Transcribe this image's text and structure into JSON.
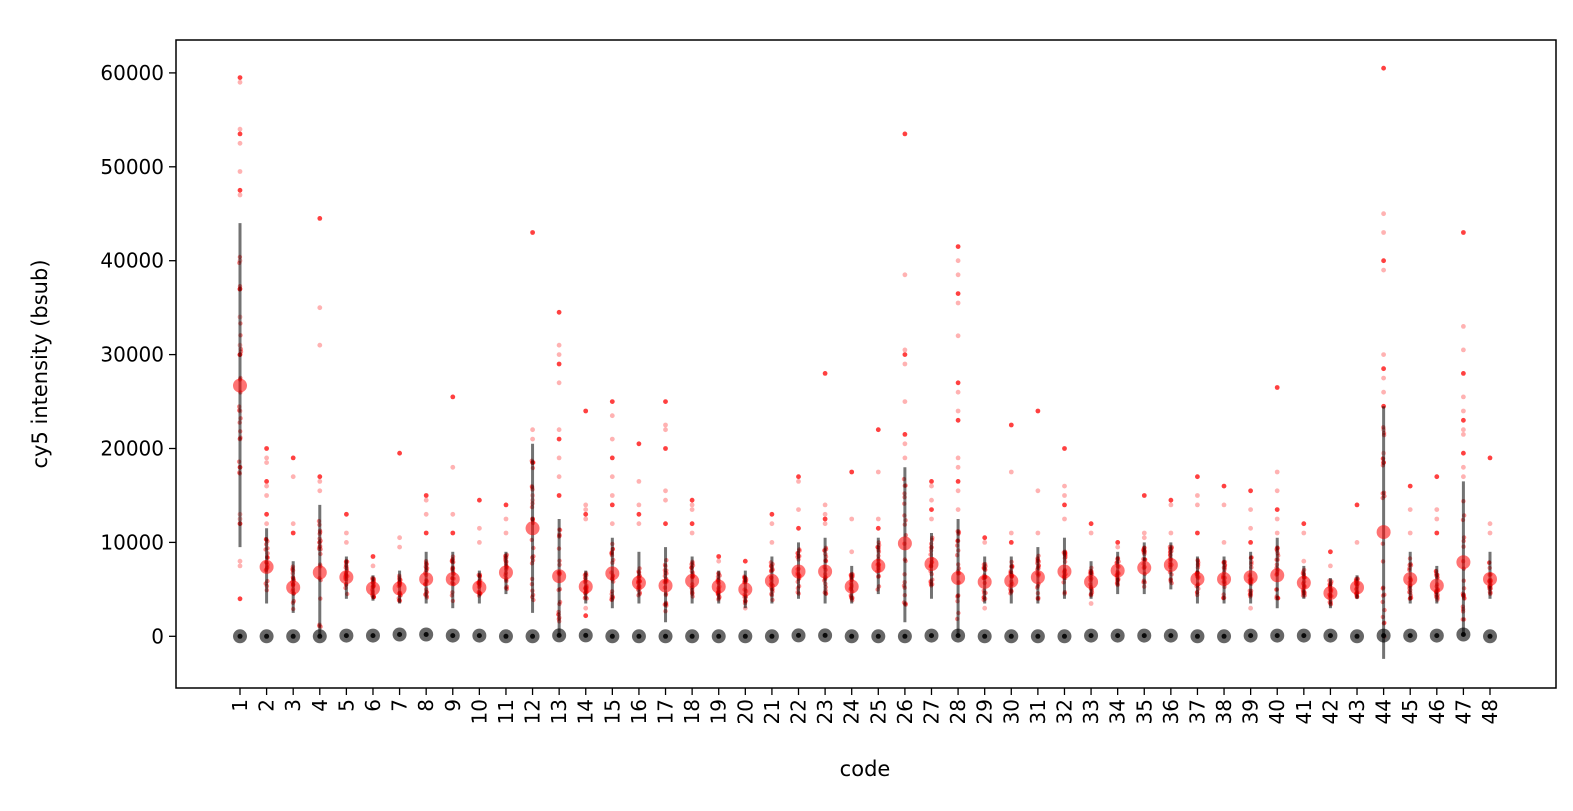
{
  "chart_data": {
    "type": "scatter",
    "title": "",
    "xlabel": "code",
    "ylabel": "cy5 intensity (bsub)",
    "ylim": [
      -5500,
      63500
    ],
    "yticks": [
      0,
      10000,
      20000,
      30000,
      40000,
      50000,
      60000
    ],
    "ytick_labels": [
      "0",
      "10000",
      "20000",
      "30000",
      "40000",
      "50000",
      "60000"
    ],
    "categories": [
      "1",
      "2",
      "3",
      "4",
      "5",
      "6",
      "7",
      "8",
      "9",
      "10",
      "11",
      "12",
      "13",
      "14",
      "15",
      "16",
      "17",
      "18",
      "19",
      "20",
      "21",
      "22",
      "23",
      "24",
      "25",
      "26",
      "27",
      "28",
      "29",
      "30",
      "31",
      "32",
      "33",
      "34",
      "35",
      "36",
      "37",
      "38",
      "39",
      "40",
      "41",
      "42",
      "43",
      "44",
      "45",
      "46",
      "47",
      "48"
    ],
    "grid": false,
    "legend": "none",
    "colors": {
      "positive": "#ff0000",
      "negative": "#000000",
      "errorbar": "#000000"
    },
    "series": [
      {
        "role": "mean",
        "values": [
          26700,
          7400,
          5200,
          6800,
          6300,
          5100,
          5100,
          6100,
          6100,
          5200,
          6800,
          11500,
          6400,
          5300,
          6700,
          5700,
          5400,
          5900,
          5300,
          5000,
          5900,
          6900,
          6900,
          5300,
          7500,
          9900,
          7700,
          6200,
          5800,
          5900,
          6300,
          6900,
          5800,
          7000,
          7300,
          7600,
          6100,
          6100,
          6300,
          6500,
          5700,
          4600,
          5200,
          11100,
          6100,
          5400,
          7900,
          6100
        ]
      },
      {
        "role": "std-range",
        "low": [
          9500,
          3500,
          2500,
          0,
          4000,
          3800,
          3500,
          3500,
          3000,
          3500,
          4500,
          2500,
          0,
          3500,
          3000,
          3500,
          1500,
          3500,
          3500,
          3000,
          3500,
          4000,
          3500,
          3500,
          4500,
          1500,
          4000,
          0,
          3500,
          3500,
          3500,
          4000,
          4000,
          4500,
          4500,
          5000,
          3500,
          3500,
          3500,
          3000,
          4000,
          3000,
          4000,
          -2400,
          3500,
          3500,
          0,
          4000
        ],
        "high": [
          44000,
          11500,
          8000,
          14000,
          8500,
          6500,
          7000,
          9000,
          9000,
          7000,
          9000,
          20500,
          12500,
          7000,
          10500,
          9000,
          9500,
          8500,
          7000,
          7000,
          8500,
          10000,
          10500,
          7500,
          10500,
          18000,
          11000,
          12500,
          8500,
          8500,
          9500,
          10500,
          8000,
          9000,
          10000,
          10000,
          8500,
          8500,
          9000,
          10500,
          7500,
          6200,
          6500,
          24500,
          9000,
          7500,
          16500,
          9000
        ]
      },
      {
        "role": "negative-control",
        "values": [
          0,
          0,
          0,
          0,
          80,
          80,
          200,
          200,
          80,
          80,
          0,
          0,
          100,
          100,
          0,
          0,
          0,
          0,
          0,
          0,
          0,
          100,
          100,
          0,
          0,
          0,
          80,
          80,
          0,
          0,
          0,
          0,
          80,
          80,
          80,
          80,
          0,
          0,
          80,
          80,
          80,
          80,
          0,
          80,
          80,
          80,
          200,
          0
        ]
      },
      {
        "role": "cell-points-outliers",
        "points": {
          "1": [
            59500,
            59000,
            54000,
            53500,
            52500,
            49500,
            47500,
            47000,
            40000,
            37000,
            34000,
            31000,
            30000,
            24000,
            21000,
            18000,
            13000,
            12500,
            12000,
            8000,
            7500,
            4000
          ],
          "2": [
            20000,
            19000,
            18500,
            16500,
            16000,
            15000,
            13000,
            12000
          ],
          "3": [
            19000,
            17000,
            12000,
            11000
          ],
          "4": [
            44500,
            35000,
            31000,
            17000,
            16500,
            15500
          ],
          "5": [
            13000,
            11000,
            10000
          ],
          "6": [
            8500,
            7500
          ],
          "7": [
            19500,
            10500,
            9500
          ],
          "8": [
            15000,
            14500,
            13000,
            11000
          ],
          "9": [
            25500,
            18000,
            13000,
            11000
          ],
          "10": [
            14500,
            11500,
            10000
          ],
          "11": [
            14000,
            12500,
            11000
          ],
          "12": [
            43000,
            22000,
            21000,
            18500,
            15000,
            14500,
            12500
          ],
          "13": [
            34500,
            31000,
            30000,
            29000,
            27000,
            22000,
            21000,
            19000,
            17000,
            15000
          ],
          "14": [
            24000,
            14000,
            13500,
            13000,
            12500,
            3000,
            2200
          ],
          "15": [
            25000,
            23500,
            21000,
            19000,
            17000,
            15000,
            14000,
            12000
          ],
          "16": [
            20500,
            16500,
            14000,
            13000,
            12000
          ],
          "17": [
            25000,
            22500,
            22000,
            20000,
            15500,
            14500,
            12000
          ],
          "18": [
            14500,
            14000,
            13500,
            12000,
            11000
          ],
          "19": [
            8500,
            8000
          ],
          "20": [
            8000,
            3000
          ],
          "21": [
            13000,
            12000,
            10000
          ],
          "22": [
            17000,
            16500,
            13500,
            11500
          ],
          "23": [
            28000,
            14000,
            13000,
            12500,
            12000
          ],
          "24": [
            17500,
            12500,
            9000
          ],
          "25": [
            22000,
            17500,
            12500,
            11500
          ],
          "26": [
            53500,
            38500,
            30500,
            30000,
            29000,
            25000,
            21500,
            20500,
            19000
          ],
          "27": [
            16500,
            16000,
            14500,
            13500,
            12500
          ],
          "28": [
            41500,
            40000,
            38500,
            36500,
            35500,
            32000,
            27000,
            26000,
            24000,
            23000,
            19000,
            18000,
            16500,
            15500,
            13500
          ],
          "29": [
            10500,
            10000,
            3000
          ],
          "30": [
            22500,
            17500,
            11000,
            10000
          ],
          "31": [
            24000,
            15500,
            11000
          ],
          "32": [
            20000,
            16000,
            15000,
            14000,
            12500
          ],
          "33": [
            12000,
            11000,
            3500
          ],
          "34": [
            10000,
            9500
          ],
          "35": [
            15000,
            11000,
            10500
          ],
          "36": [
            14500,
            14000,
            11000
          ],
          "37": [
            17000,
            15000,
            14000,
            11000
          ],
          "38": [
            16000,
            14000,
            10000
          ],
          "39": [
            15500,
            13500,
            11500,
            10000,
            3000
          ],
          "40": [
            26500,
            17500,
            15500,
            13500,
            12500,
            11000
          ],
          "41": [
            12000,
            11000,
            8000
          ],
          "42": [
            9000,
            7500
          ],
          "43": [
            14000,
            10000
          ],
          "44": [
            60500,
            45000,
            43000,
            40000,
            39000,
            30000,
            28500,
            27500,
            26000,
            24500,
            22000,
            19500,
            18500
          ],
          "45": [
            16000,
            13500,
            11000
          ],
          "46": [
            17000,
            13500,
            12500,
            11000
          ],
          "47": [
            43000,
            33000,
            30500,
            28000,
            25500,
            24000,
            23000,
            22000,
            21500,
            19500,
            18000,
            17000
          ],
          "48": [
            19000,
            12000,
            11000
          ]
        }
      }
    ]
  }
}
